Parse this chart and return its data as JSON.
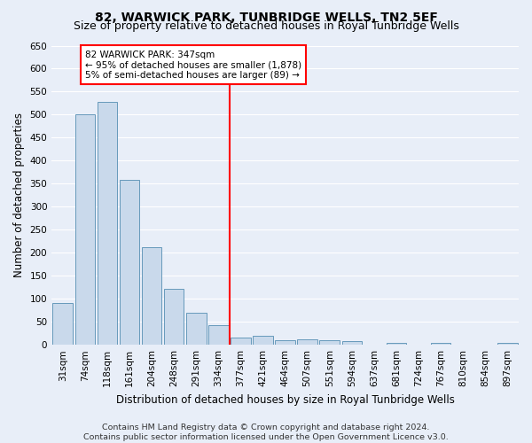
{
  "title": "82, WARWICK PARK, TUNBRIDGE WELLS, TN2 5EF",
  "subtitle": "Size of property relative to detached houses in Royal Tunbridge Wells",
  "xlabel": "Distribution of detached houses by size in Royal Tunbridge Wells",
  "ylabel": "Number of detached properties",
  "footer_line1": "Contains HM Land Registry data © Crown copyright and database right 2024.",
  "footer_line2": "Contains public sector information licensed under the Open Government Licence v3.0.",
  "categories": [
    "31sqm",
    "74sqm",
    "118sqm",
    "161sqm",
    "204sqm",
    "248sqm",
    "291sqm",
    "334sqm",
    "377sqm",
    "421sqm",
    "464sqm",
    "507sqm",
    "551sqm",
    "594sqm",
    "637sqm",
    "681sqm",
    "724sqm",
    "767sqm",
    "810sqm",
    "854sqm",
    "897sqm"
  ],
  "values": [
    90,
    500,
    527,
    359,
    212,
    121,
    70,
    43,
    16,
    19,
    10,
    12,
    10,
    8,
    0,
    5,
    0,
    5,
    0,
    0,
    5
  ],
  "bar_color": "#c9d9eb",
  "bar_edge_color": "#6699bb",
  "marker_index": 7,
  "annotation_text": "82 WARWICK PARK: 347sqm\n← 95% of detached houses are smaller (1,878)\n5% of semi-detached houses are larger (89) →",
  "annotation_box_color": "white",
  "annotation_box_edge": "red",
  "vline_color": "red",
  "ylim": [
    0,
    650
  ],
  "yticks": [
    0,
    50,
    100,
    150,
    200,
    250,
    300,
    350,
    400,
    450,
    500,
    550,
    600,
    650
  ],
  "background_color": "#e8eef8",
  "grid_color": "#ffffff",
  "title_fontsize": 10,
  "subtitle_fontsize": 9,
  "axis_label_fontsize": 8.5,
  "tick_fontsize": 7.5,
  "annotation_fontsize": 7.5,
  "footer_fontsize": 6.8
}
